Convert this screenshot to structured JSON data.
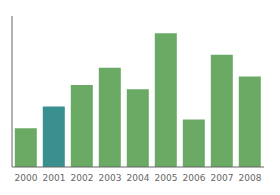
{
  "chart_data": {
    "type": "bar",
    "categories": [
      "2000",
      "2001",
      "2002",
      "2003",
      "2004",
      "2005",
      "2006",
      "2007",
      "2008"
    ],
    "values": [
      18,
      28,
      38,
      46,
      36,
      62,
      22,
      52,
      42
    ],
    "colors": [
      "#6aaa64",
      "#3a8f8f",
      "#6aaa64",
      "#6aaa64",
      "#6aaa64",
      "#6aaa64",
      "#6aaa64",
      "#6aaa64",
      "#6aaa64"
    ],
    "ylim": [
      0,
      70
    ],
    "grid": false,
    "tick_labels": "x"
  }
}
